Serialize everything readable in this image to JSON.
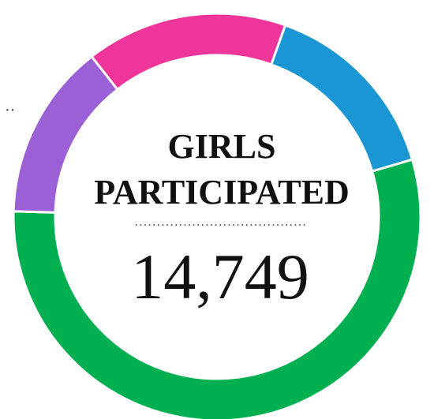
{
  "chart_data": {
    "type": "donut",
    "title": [
      "GIRLS",
      "PARTICIPATED"
    ],
    "total": {
      "value": 14749,
      "label": "14,749"
    },
    "categories": [
      null,
      null,
      null,
      null
    ],
    "values": [
      16,
      15,
      55,
      14
    ],
    "colors": [
      "#f0359a",
      "#1a96d4",
      "#00b050",
      "#9b5fd6"
    ],
    "start_angle": -38
  }
}
